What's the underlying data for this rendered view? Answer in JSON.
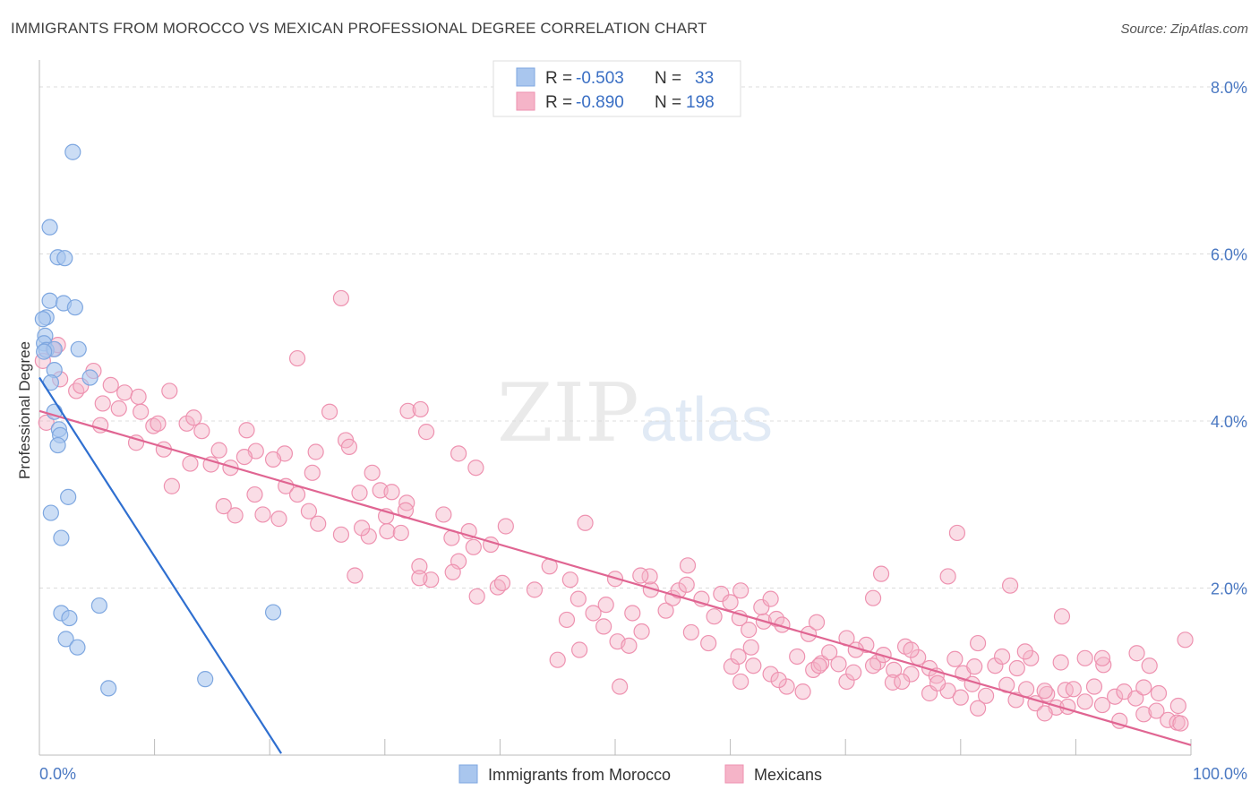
{
  "title": "IMMIGRANTS FROM MOROCCO VS MEXICAN PROFESSIONAL DEGREE CORRELATION CHART",
  "source": "Source: ZipAtlas.com",
  "watermark": {
    "zip": "ZIP",
    "atlas": "atlas"
  },
  "colors": {
    "blue_fill": "#a9c6ee",
    "blue_stroke": "#7ea7e0",
    "blue_line": "#2f6fd0",
    "pink_fill": "#f5b4c8",
    "pink_stroke": "#ee92b0",
    "pink_line": "#e06592",
    "tick": "#4a78c2"
  },
  "legend": {
    "r_label": "R =",
    "n_label": "N =",
    "entries": [
      {
        "r": "-0.503",
        "n": "33"
      },
      {
        "r": "-0.890",
        "n": "198"
      }
    ]
  },
  "chart_data": {
    "type": "scatter",
    "title": "IMMIGRANTS FROM MOROCCO VS MEXICAN PROFESSIONAL DEGREE CORRELATION CHART",
    "xlabel": "",
    "ylabel": "Professional Degree",
    "xlim": [
      0,
      100
    ],
    "ylim": [
      0,
      8.0
    ],
    "x_tick_labels": [
      "0.0%",
      "100.0%"
    ],
    "y_tick_labels": [
      "2.0%",
      "4.0%",
      "6.0%",
      "8.0%"
    ],
    "y_ticks": [
      2,
      4,
      6,
      8
    ],
    "grid": true,
    "legend_position": "top-center",
    "series": [
      {
        "name": "Immigrants from Morocco",
        "color": "blue",
        "regression": {
          "x0": 0,
          "y0": 4.52,
          "x1": 21,
          "y1": 0.02
        },
        "points": [
          [
            2.9,
            7.22
          ],
          [
            0.9,
            6.32
          ],
          [
            1.6,
            5.96
          ],
          [
            2.2,
            5.95
          ],
          [
            0.9,
            5.44
          ],
          [
            2.1,
            5.41
          ],
          [
            3.1,
            5.36
          ],
          [
            0.6,
            5.24
          ],
          [
            0.3,
            5.22
          ],
          [
            0.5,
            5.02
          ],
          [
            0.4,
            4.93
          ],
          [
            0.6,
            4.85
          ],
          [
            1.3,
            4.86
          ],
          [
            3.4,
            4.86
          ],
          [
            0.4,
            4.83
          ],
          [
            1.3,
            4.61
          ],
          [
            4.4,
            4.52
          ],
          [
            1.0,
            4.46
          ],
          [
            1.3,
            4.11
          ],
          [
            1.7,
            3.9
          ],
          [
            1.8,
            3.83
          ],
          [
            1.6,
            3.71
          ],
          [
            2.5,
            3.09
          ],
          [
            1.0,
            2.9
          ],
          [
            1.9,
            2.6
          ],
          [
            5.2,
            1.79
          ],
          [
            1.9,
            1.7
          ],
          [
            2.6,
            1.64
          ],
          [
            20.3,
            1.71
          ],
          [
            2.3,
            1.39
          ],
          [
            3.3,
            1.29
          ],
          [
            6.0,
            0.8
          ],
          [
            14.4,
            0.91
          ]
        ]
      },
      {
        "name": "Mexicans",
        "color": "pink",
        "regression": {
          "x0": 0,
          "y0": 4.12,
          "x1": 100,
          "y1": 0.12
        },
        "points": [
          [
            1.2,
            4.86
          ],
          [
            1.6,
            4.91
          ],
          [
            3.2,
            4.36
          ],
          [
            3.6,
            4.42
          ],
          [
            0.6,
            3.98
          ],
          [
            0.3,
            4.72
          ],
          [
            1.8,
            4.5
          ],
          [
            4.7,
            4.6
          ],
          [
            6.2,
            4.43
          ],
          [
            7.4,
            4.34
          ],
          [
            8.6,
            4.29
          ],
          [
            11.3,
            4.36
          ],
          [
            5.5,
            4.21
          ],
          [
            6.9,
            4.15
          ],
          [
            8.8,
            4.11
          ],
          [
            5.3,
            3.95
          ],
          [
            9.9,
            3.94
          ],
          [
            10.3,
            3.97
          ],
          [
            12.8,
            3.97
          ],
          [
            13.4,
            4.04
          ],
          [
            14.1,
            3.88
          ],
          [
            18.0,
            3.89
          ],
          [
            8.4,
            3.74
          ],
          [
            10.8,
            3.66
          ],
          [
            15.6,
            3.65
          ],
          [
            18.8,
            3.64
          ],
          [
            21.3,
            3.61
          ],
          [
            13.1,
            3.49
          ],
          [
            14.9,
            3.48
          ],
          [
            16.6,
            3.44
          ],
          [
            20.3,
            3.54
          ],
          [
            17.8,
            3.57
          ],
          [
            23.7,
            3.38
          ],
          [
            11.5,
            3.22
          ],
          [
            21.4,
            3.22
          ],
          [
            22.4,
            3.12
          ],
          [
            18.7,
            3.12
          ],
          [
            16.0,
            2.98
          ],
          [
            17.0,
            2.87
          ],
          [
            19.4,
            2.88
          ],
          [
            20.8,
            2.83
          ],
          [
            24.2,
            2.77
          ],
          [
            26.2,
            2.64
          ],
          [
            28.6,
            2.62
          ],
          [
            30.2,
            2.68
          ],
          [
            28.0,
            2.72
          ],
          [
            30.1,
            2.86
          ],
          [
            31.4,
            2.66
          ],
          [
            23.4,
            2.92
          ],
          [
            24.0,
            3.63
          ],
          [
            26.6,
            3.77
          ],
          [
            25.2,
            4.11
          ],
          [
            22.4,
            4.75
          ],
          [
            26.2,
            5.47
          ],
          [
            26.9,
            3.69
          ],
          [
            28.9,
            3.38
          ],
          [
            27.8,
            3.14
          ],
          [
            29.6,
            3.17
          ],
          [
            30.6,
            3.15
          ],
          [
            31.9,
            3.02
          ],
          [
            32.0,
            4.12
          ],
          [
            33.1,
            4.14
          ],
          [
            33.6,
            3.87
          ],
          [
            36.4,
            3.61
          ],
          [
            35.1,
            2.88
          ],
          [
            37.9,
            3.44
          ],
          [
            35.8,
            2.6
          ],
          [
            37.7,
            2.49
          ],
          [
            40.5,
            2.74
          ],
          [
            37.3,
            2.68
          ],
          [
            34.0,
            2.1
          ],
          [
            36.4,
            2.32
          ],
          [
            33.0,
            2.26
          ],
          [
            39.2,
            2.52
          ],
          [
            39.8,
            2.01
          ],
          [
            35.9,
            2.19
          ],
          [
            27.4,
            2.15
          ],
          [
            33.0,
            2.12
          ],
          [
            31.8,
            2.93
          ],
          [
            38.0,
            1.9
          ],
          [
            40.2,
            2.06
          ],
          [
            43.0,
            1.98
          ],
          [
            44.3,
            2.26
          ],
          [
            45.8,
            1.62
          ],
          [
            46.1,
            2.1
          ],
          [
            47.4,
            2.78
          ],
          [
            46.8,
            1.87
          ],
          [
            48.1,
            1.7
          ],
          [
            49.2,
            1.8
          ],
          [
            49.0,
            1.54
          ],
          [
            50.0,
            2.11
          ],
          [
            51.5,
            1.7
          ],
          [
            50.2,
            1.36
          ],
          [
            51.2,
            1.31
          ],
          [
            53.1,
            1.98
          ],
          [
            52.3,
            1.48
          ],
          [
            54.4,
            1.73
          ],
          [
            55.0,
            1.88
          ],
          [
            55.5,
            1.97
          ],
          [
            56.2,
            2.04
          ],
          [
            56.3,
            2.27
          ],
          [
            57.5,
            1.87
          ],
          [
            59.2,
            1.93
          ],
          [
            60.0,
            1.83
          ],
          [
            58.6,
            1.66
          ],
          [
            60.8,
            1.64
          ],
          [
            61.6,
            1.5
          ],
          [
            62.9,
            1.6
          ],
          [
            61.8,
            1.29
          ],
          [
            62.7,
            1.77
          ],
          [
            64.0,
            1.63
          ],
          [
            64.5,
            1.56
          ],
          [
            63.5,
            1.87
          ],
          [
            60.1,
            1.06
          ],
          [
            60.7,
            1.18
          ],
          [
            62.0,
            1.07
          ],
          [
            63.5,
            0.97
          ],
          [
            64.9,
            0.82
          ],
          [
            66.3,
            0.76
          ],
          [
            67.2,
            1.02
          ],
          [
            67.9,
            1.1
          ],
          [
            68.6,
            1.23
          ],
          [
            69.4,
            1.09
          ],
          [
            70.1,
            0.88
          ],
          [
            70.7,
            0.99
          ],
          [
            71.8,
            1.32
          ],
          [
            72.8,
            1.11
          ],
          [
            73.3,
            1.2
          ],
          [
            74.2,
            1.02
          ],
          [
            75.2,
            1.3
          ],
          [
            74.1,
            0.87
          ],
          [
            75.7,
            0.97
          ],
          [
            77.3,
            1.04
          ],
          [
            77.9,
            0.95
          ],
          [
            78.9,
            0.77
          ],
          [
            79.5,
            1.15
          ],
          [
            80.2,
            0.98
          ],
          [
            81.2,
            1.06
          ],
          [
            81.0,
            0.85
          ],
          [
            82.2,
            0.71
          ],
          [
            83.0,
            1.07
          ],
          [
            84.0,
            0.84
          ],
          [
            84.8,
            0.66
          ],
          [
            85.7,
            0.79
          ],
          [
            86.5,
            0.62
          ],
          [
            87.5,
            0.73
          ],
          [
            88.3,
            0.57
          ],
          [
            89.1,
            0.78
          ],
          [
            89.8,
            0.79
          ],
          [
            90.8,
            0.64
          ],
          [
            91.6,
            0.82
          ],
          [
            92.3,
            0.6
          ],
          [
            93.4,
            0.7
          ],
          [
            94.2,
            0.76
          ],
          [
            95.2,
            0.68
          ],
          [
            95.9,
            0.49
          ],
          [
            97.0,
            0.53
          ],
          [
            98.0,
            0.42
          ],
          [
            98.8,
            0.39
          ],
          [
            99.5,
            1.38
          ],
          [
            45.0,
            1.14
          ],
          [
            46.9,
            1.26
          ],
          [
            50.4,
            0.82
          ],
          [
            56.6,
            1.47
          ],
          [
            58.1,
            1.34
          ],
          [
            60.9,
            0.88
          ],
          [
            64.2,
            0.9
          ],
          [
            66.8,
            1.45
          ],
          [
            67.7,
            1.07
          ],
          [
            70.1,
            1.4
          ],
          [
            72.4,
            1.07
          ],
          [
            74.9,
            0.88
          ],
          [
            76.3,
            1.17
          ],
          [
            77.3,
            0.74
          ],
          [
            78.0,
            0.86
          ],
          [
            80.0,
            0.69
          ],
          [
            81.5,
            0.56
          ],
          [
            83.6,
            1.18
          ],
          [
            84.9,
            1.04
          ],
          [
            86.1,
            1.16
          ],
          [
            87.3,
            0.77
          ],
          [
            88.7,
            1.11
          ],
          [
            89.3,
            0.58
          ],
          [
            90.8,
            1.16
          ],
          [
            92.4,
            1.08
          ],
          [
            93.8,
            0.41
          ],
          [
            95.3,
            1.22
          ],
          [
            96.4,
            1.07
          ],
          [
            92.3,
            1.16
          ],
          [
            87.3,
            0.5
          ],
          [
            98.9,
            0.59
          ],
          [
            88.8,
            1.66
          ],
          [
            78.9,
            2.14
          ],
          [
            79.7,
            2.66
          ],
          [
            72.4,
            1.88
          ],
          [
            73.1,
            2.17
          ],
          [
            84.3,
            2.03
          ],
          [
            60.9,
            1.97
          ],
          [
            53.0,
            2.14
          ],
          [
            52.2,
            2.15
          ],
          [
            67.5,
            1.59
          ],
          [
            81.5,
            1.34
          ],
          [
            85.6,
            1.24
          ],
          [
            95.9,
            0.81
          ],
          [
            97.2,
            0.74
          ],
          [
            99.1,
            0.38
          ],
          [
            70.9,
            1.26
          ],
          [
            75.7,
            1.26
          ],
          [
            65.8,
            1.18
          ]
        ]
      }
    ]
  },
  "bottom_legend": [
    "Immigrants from Morocco",
    "Mexicans"
  ]
}
